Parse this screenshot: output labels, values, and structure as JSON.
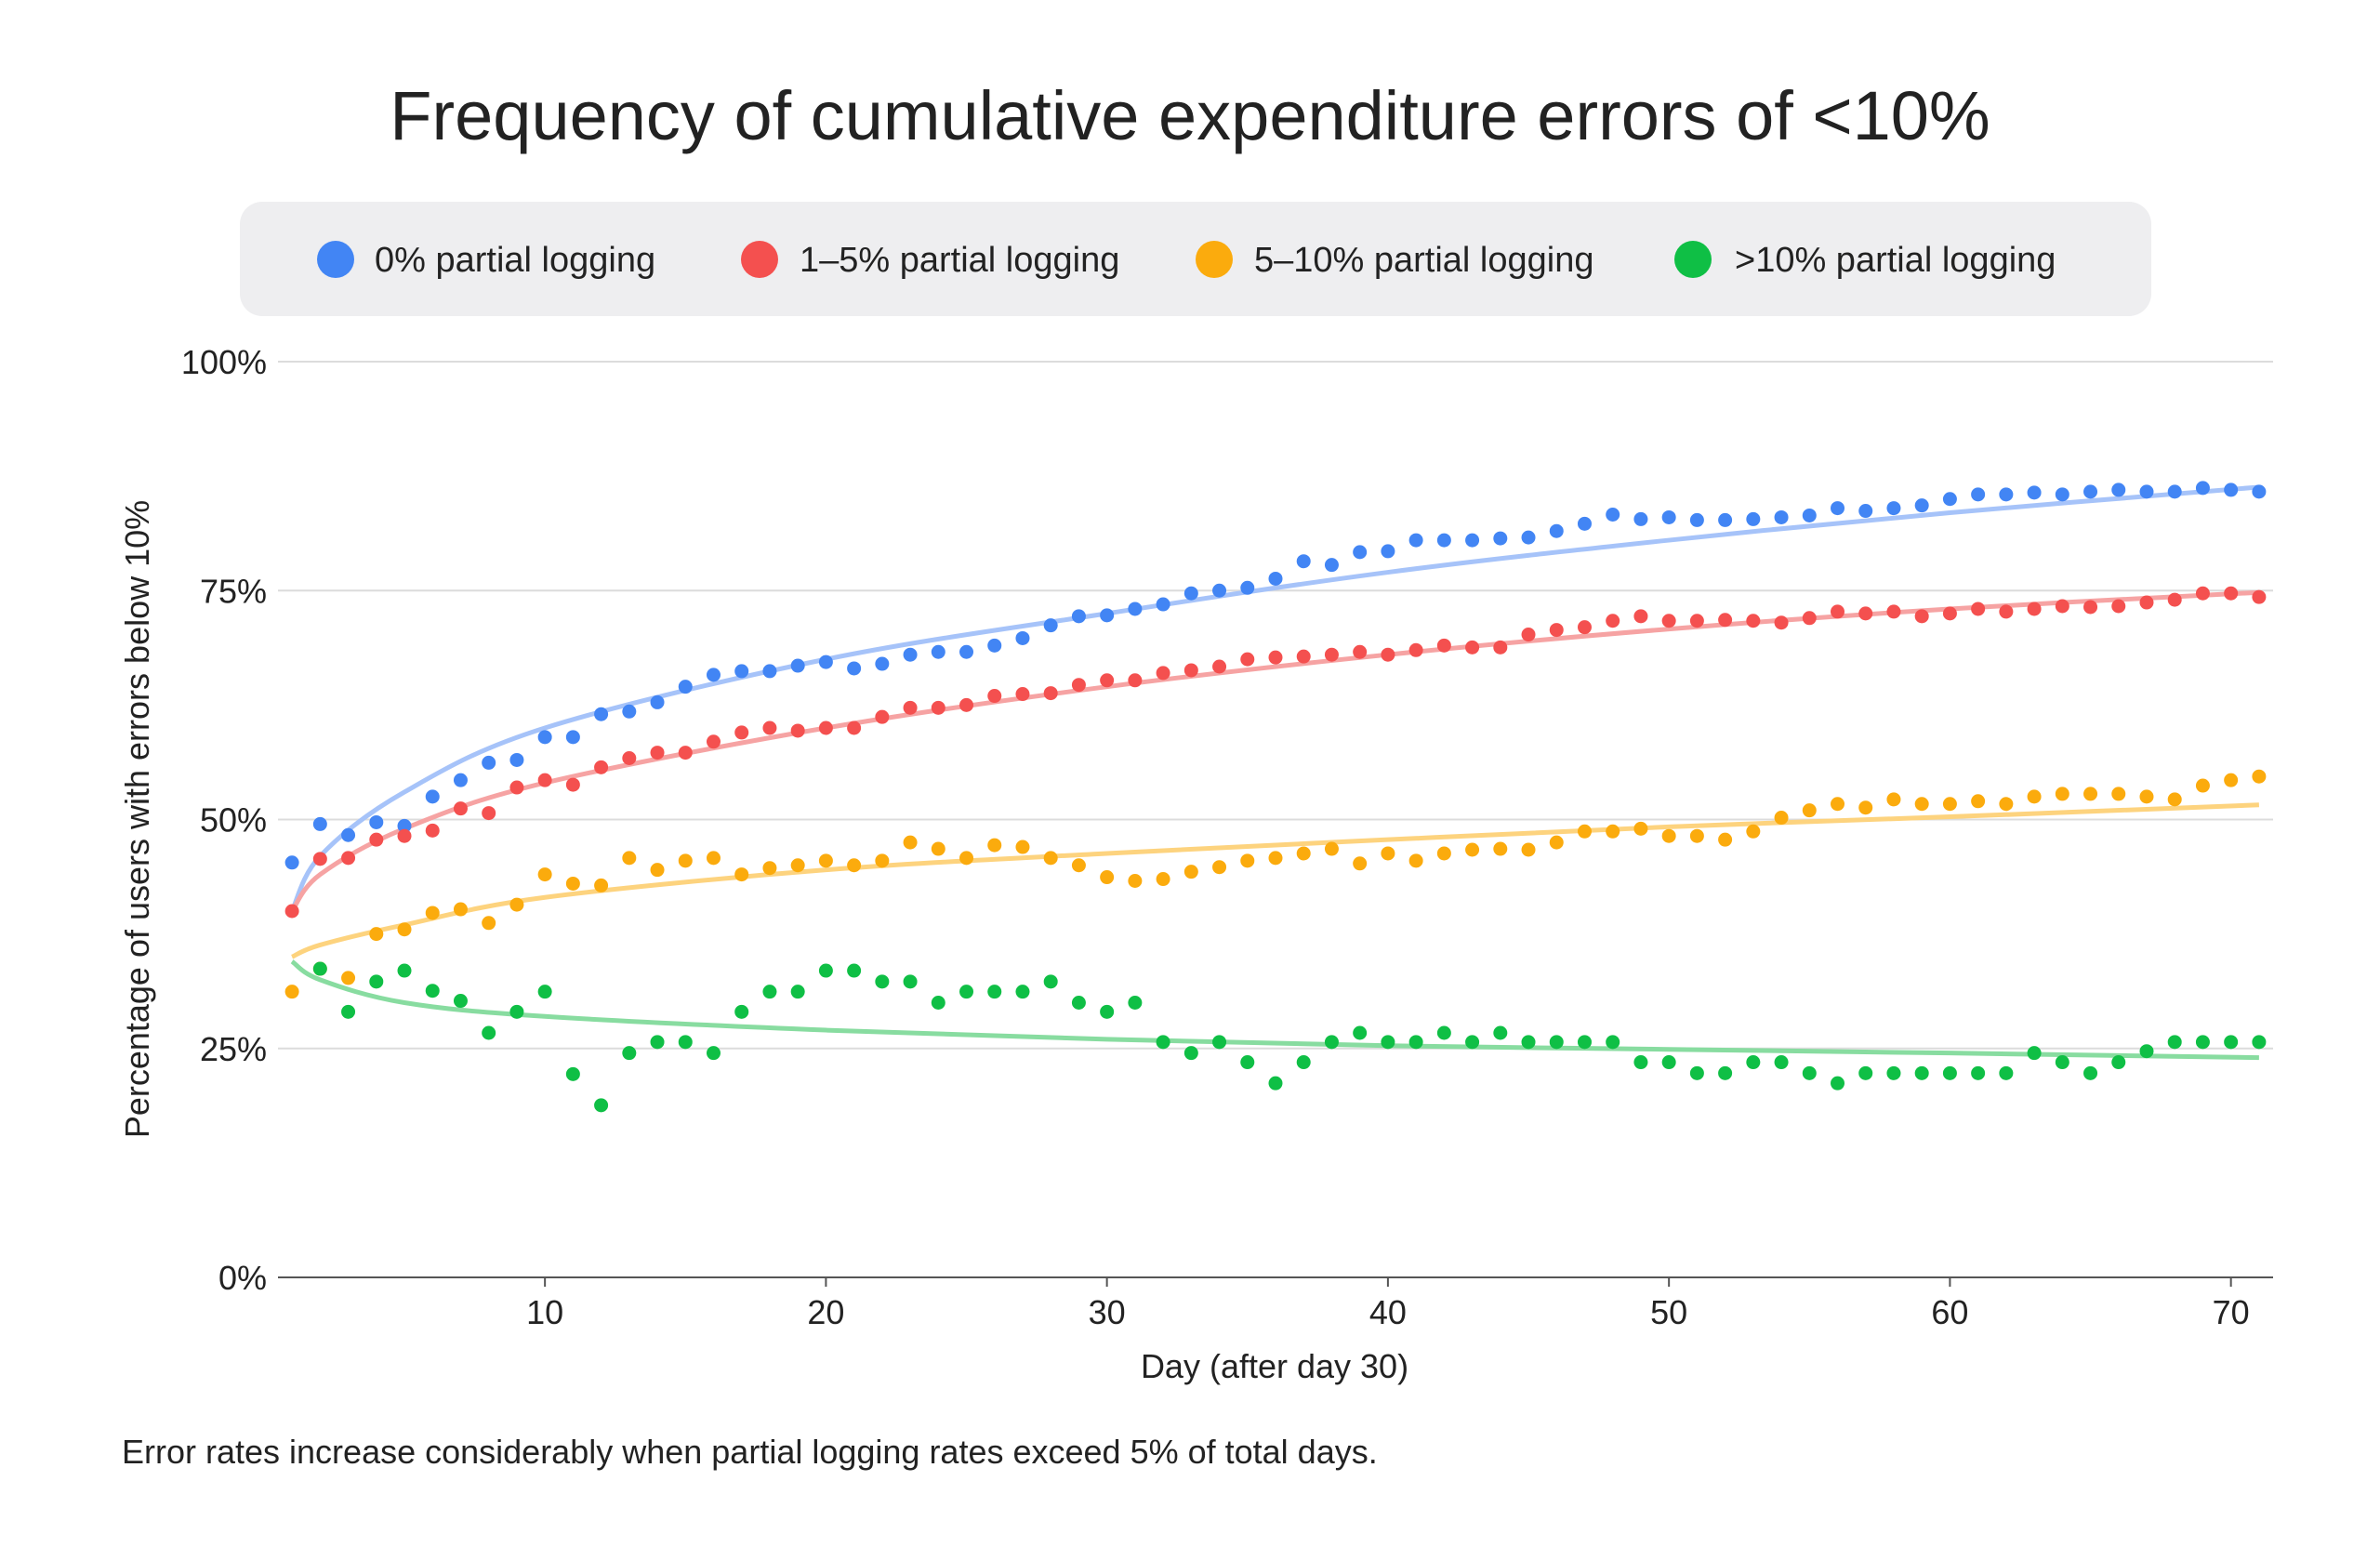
{
  "chart_data": {
    "type": "scatter",
    "title": "Frequency of cumulative expenditure errors of <10%",
    "xlabel": "Day (after day 30)",
    "ylabel": "Percentage of users with errors below 10%",
    "xlim": [
      0.5,
      71.5
    ],
    "ylim": [
      0,
      100
    ],
    "x_ticks": [
      10,
      20,
      30,
      40,
      50,
      60,
      70
    ],
    "y_ticks": [
      0,
      25,
      50,
      75,
      100
    ],
    "y_tick_labels": [
      "0%",
      "25%",
      "50%",
      "75%",
      "100%"
    ],
    "grid": "horizontal",
    "legend_position": "top",
    "footnote": "Error rates increase considerably when partial logging rates exceed 5% of total days.",
    "trend_days": [
      1,
      2,
      5,
      10,
      20,
      30,
      40,
      50,
      60,
      71
    ],
    "series": [
      {
        "name": "0% partial logging",
        "color": "#4285f4",
        "trend_color": "#a6c3f9",
        "values": [
          45.3,
          49.5,
          48.3,
          49.7,
          49.3,
          52.5,
          54.3,
          56.2,
          56.5,
          59,
          59,
          61.5,
          61.8,
          62.8,
          64.5,
          65.8,
          66.2,
          66.2,
          66.8,
          67.2,
          66.5,
          67,
          68,
          68.3,
          68.3,
          69,
          69.8,
          71.2,
          72.2,
          72.3,
          73,
          73.5,
          74.7,
          75,
          75.3,
          76.3,
          78.2,
          77.8,
          79.2,
          79.3,
          80.5,
          80.5,
          80.5,
          80.7,
          80.8,
          81.5,
          82.3,
          83.3,
          82.8,
          83,
          82.7,
          82.7,
          82.8,
          83,
          83.2,
          84,
          83.7,
          84,
          84.3,
          85,
          85.5,
          85.5,
          85.7,
          85.5,
          85.8,
          86,
          85.8,
          85.8,
          86.2,
          86,
          85.8
        ],
        "trend": [
          40,
          46,
          53,
          60,
          67.5,
          72.5,
          77,
          80.5,
          83.5,
          86.3
        ]
      },
      {
        "name": "1–5% partial logging",
        "color": "#f4504f",
        "trend_color": "#f6a3a3",
        "values": [
          40,
          45.7,
          45.8,
          47.8,
          48.2,
          48.8,
          51.2,
          50.7,
          53.5,
          54.3,
          53.8,
          55.7,
          56.7,
          57.3,
          57.3,
          58.5,
          59.5,
          60,
          59.7,
          60,
          60,
          61.2,
          62.2,
          62.2,
          62.5,
          63.5,
          63.7,
          63.8,
          64.7,
          65.2,
          65.2,
          66,
          66.3,
          66.7,
          67.5,
          67.7,
          67.8,
          68,
          68.3,
          68,
          68.5,
          69,
          68.8,
          68.8,
          70.2,
          70.7,
          71,
          71.7,
          72.2,
          71.7,
          71.7,
          71.8,
          71.7,
          71.5,
          72,
          72.7,
          72.5,
          72.7,
          72.2,
          72.5,
          73,
          72.7,
          73,
          73.3,
          73.2,
          73.3,
          73.7,
          74,
          74.7,
          74.7,
          74.3
        ],
        "trend": [
          40,
          44,
          49,
          54,
          60,
          64.5,
          68,
          70.8,
          73,
          74.8
        ]
      },
      {
        "name": "5–10% partial logging",
        "color": "#fbab0d",
        "trend_color": "#fdd37e",
        "values": [
          31.2,
          33.7,
          32.7,
          37.5,
          38,
          39.8,
          40.2,
          38.7,
          40.7,
          44,
          43,
          42.8,
          45.8,
          44.5,
          45.5,
          45.8,
          44,
          44.7,
          45,
          45.5,
          45,
          45.5,
          47.5,
          46.8,
          45.8,
          47.2,
          47,
          45.8,
          45,
          43.7,
          43.3,
          43.5,
          44.3,
          44.8,
          45.5,
          45.8,
          46.3,
          46.8,
          45.2,
          46.3,
          45.5,
          46.3,
          46.7,
          46.8,
          46.7,
          47.5,
          48.7,
          48.7,
          49,
          48.2,
          48.2,
          47.8,
          48.7,
          50.2,
          51,
          51.7,
          51.3,
          52.2,
          51.7,
          51.7,
          52,
          51.7,
          52.5,
          52.8,
          52.8,
          52.8,
          52.5,
          52.2,
          53.7,
          54.3,
          54.7
        ],
        "trend": [
          35,
          36.3,
          38.5,
          41.5,
          44.5,
          46.3,
          47.8,
          49.2,
          50.3,
          51.6
        ]
      },
      {
        "name": ">10% partial logging",
        "color": "#0fbf45",
        "trend_color": "#88dca0",
        "values": [
          null,
          33.7,
          29,
          32.3,
          33.5,
          31.3,
          30.2,
          26.7,
          29,
          31.2,
          22.2,
          18.8,
          24.5,
          25.7,
          25.7,
          24.5,
          29,
          31.2,
          31.2,
          33.5,
          33.5,
          32.3,
          32.3,
          30,
          31.2,
          31.2,
          31.2,
          32.3,
          30,
          29,
          30,
          25.7,
          24.5,
          25.7,
          23.5,
          21.2,
          23.5,
          25.7,
          26.7,
          25.7,
          25.7,
          26.7,
          25.7,
          26.7,
          25.7,
          25.7,
          25.7,
          25.7,
          23.5,
          23.5,
          22.3,
          22.3,
          23.5,
          23.5,
          22.3,
          21.2,
          22.3,
          22.3,
          22.3,
          22.3,
          22.3,
          22.3,
          24.5,
          23.5,
          22.3,
          23.5,
          24.7,
          25.7,
          25.7,
          25.7,
          25.7
        ],
        "trend": [
          34.5,
          32.5,
          30,
          28.5,
          27,
          26,
          25.3,
          24.9,
          24.5,
          24
        ]
      }
    ]
  }
}
